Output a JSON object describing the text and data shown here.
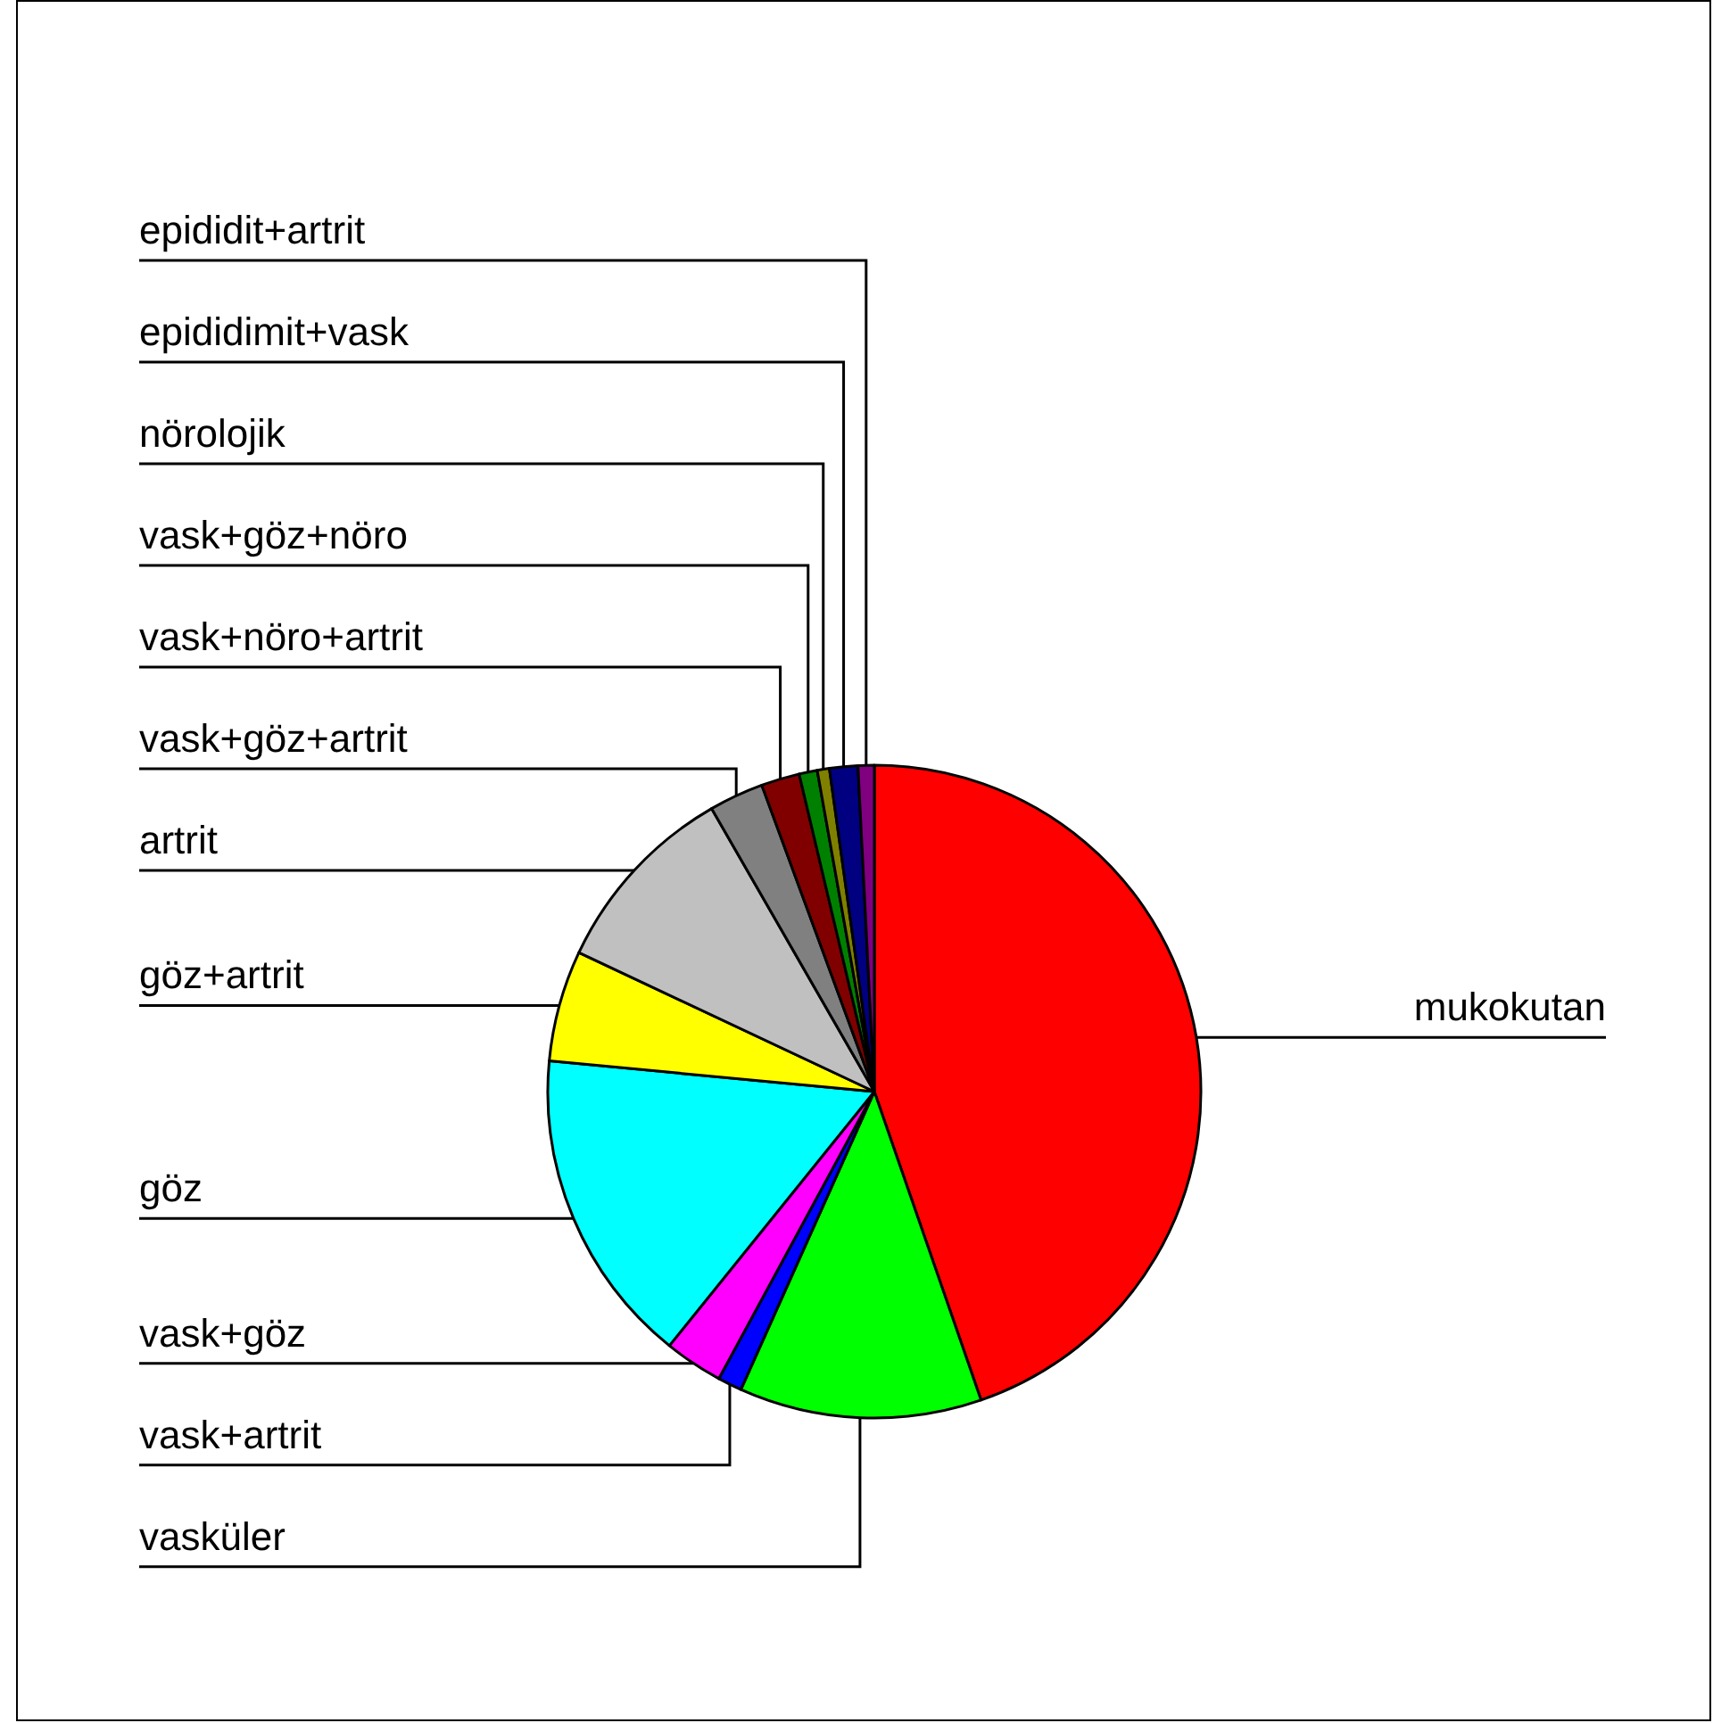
{
  "chart_data": {
    "type": "pie",
    "categories": [
      "mukokutan",
      "vasküler",
      "vask+artrit",
      "vask+göz",
      "göz",
      "göz+artrit",
      "artrit",
      "vask+göz+artrit",
      "vask+nöro+artrit",
      "vask+göz+nöro",
      "nörolojik",
      "epididimit+vask",
      "epididit+artrit"
    ],
    "values": [
      44.7,
      12,
      1.2,
      2.9,
      15.7,
      5.5,
      9.7,
      2.7,
      1.9,
      0.9,
      0.6,
      1.4,
      0.8
    ],
    "colors": [
      "#ff0000",
      "#00ff00",
      "#0000ff",
      "#ff00ff",
      "#00ffff",
      "#ffff00",
      "#c0c0c0",
      "#808080",
      "#800000",
      "#008000",
      "#808000",
      "#000080",
      "#800080"
    ]
  }
}
